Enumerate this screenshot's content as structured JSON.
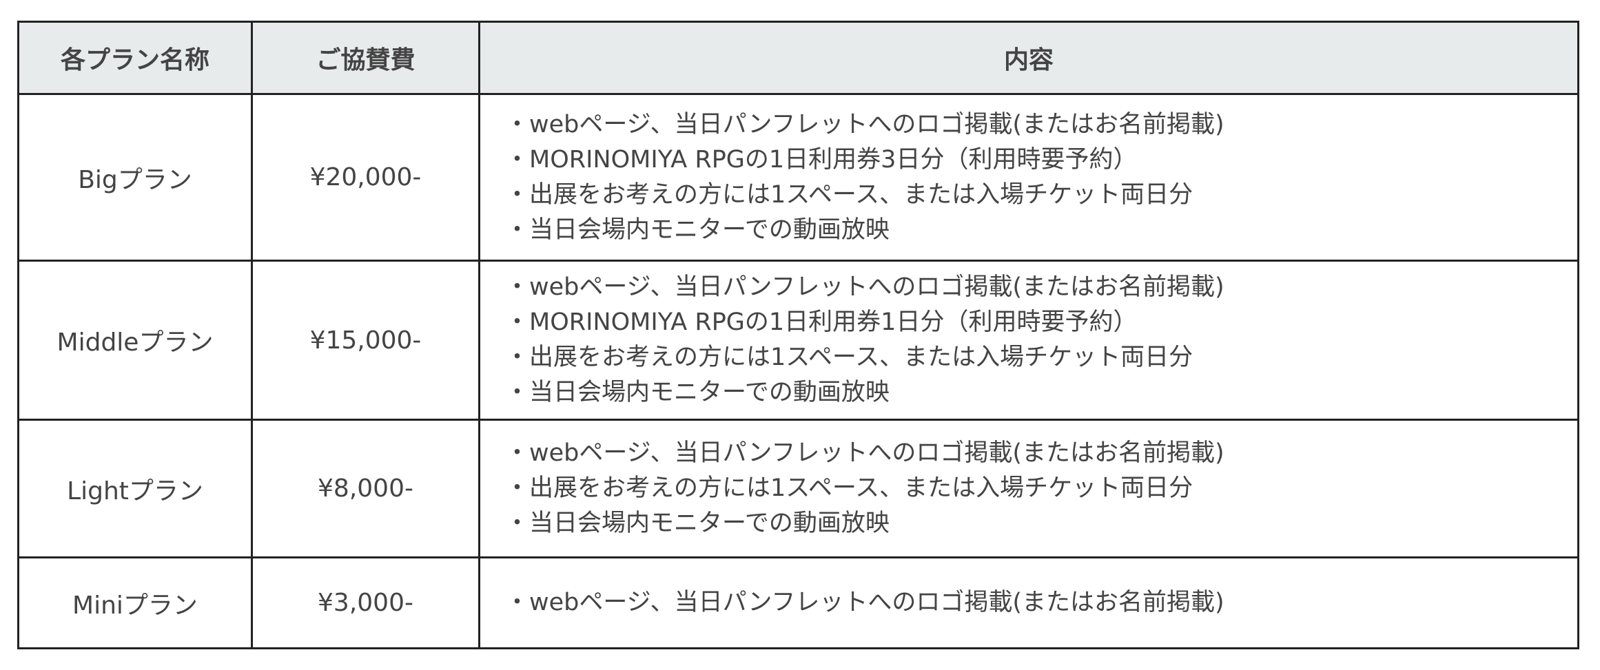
{
  "headers": [
    "各プラン名称",
    "ご協賛費",
    "内容"
  ],
  "rows": [
    {
      "name": "Bigプラン",
      "fee": "¥20,000-",
      "items": [
        "・webページ、当日パンフレットへのロゴ掲載(またはお名前掲載)",
        "・MORINOMIYA RPGの1日利用券3日分（利用時要予約）",
        "・出展をお考えの方には1スペース、または入場チケット両日分",
        "・当日会場内モニターでの動画放映"
      ]
    },
    {
      "name": "Middleプラン",
      "fee": "¥15,000-",
      "items": [
        "・webページ、当日パンフレットへのロゴ掲載(またはお名前掲載)",
        "・MORINOMIYA RPGの1日利用券1日分（利用時要予約）",
        "・出展をお考えの方には1スペース、または入場チケット両日分",
        "・当日会場内モニターでの動画放映"
      ]
    },
    {
      "name": "Lightプラン",
      "fee": "¥8,000-",
      "items": [
        "・webページ、当日パンフレットへのロゴ掲載(またはお名前掲載)",
        "・出展をお考えの方には1スペース、または入場チケット両日分",
        "・当日会場内モニターでの動画放映"
      ]
    },
    {
      "name": "Miniプラン",
      "fee": "¥3,000-",
      "items": [
        "・webページ、当日パンフレットへのロゴ掲載(またはお名前掲載)"
      ]
    }
  ],
  "colors": {
    "header_bg": "#e8ebec",
    "border": "#222222",
    "text": "#444444"
  }
}
